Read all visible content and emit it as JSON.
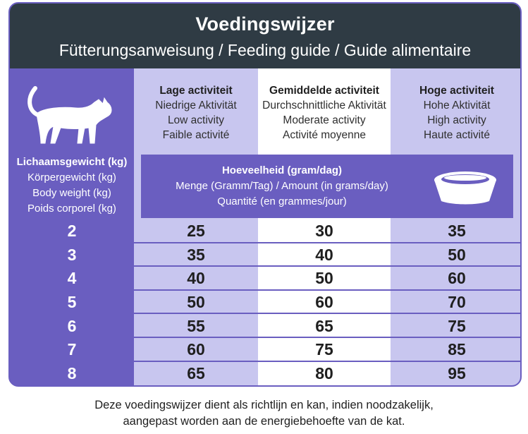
{
  "header": {
    "title": "Voedingswijzer",
    "subtitle": "Fütterungsanweisung / Feeding guide / Guide alimentaire"
  },
  "colors": {
    "header_bg": "#2f3b44",
    "accent_purple": "#6a5ec0",
    "light_purple": "#c8c6ef",
    "white": "#ffffff"
  },
  "icons": {
    "cat": "cat-icon",
    "bowl": "bowl-icon"
  },
  "activity": {
    "low": {
      "nl": "Lage activiteit",
      "de": "Niedrige Aktivität",
      "en": "Low activity",
      "fr": "Faible activité"
    },
    "mid": {
      "nl": "Gemiddelde activiteit",
      "de": "Durchschnittliche Aktivität",
      "en": "Moderate activity",
      "fr": "Activité moyenne"
    },
    "high": {
      "nl": "Hoge activiteit",
      "de": "Hohe Aktivität",
      "en": "High activity",
      "fr": "Haute activité"
    }
  },
  "body_weight": {
    "nl": "Lichaamsgewicht (kg)",
    "de": "Körpergewicht (kg)",
    "en": "Body weight (kg)",
    "fr": "Poids corporel (kg)"
  },
  "amount": {
    "nl": "Hoeveelheid (gram/dag)",
    "de_en": "Menge (Gramm/Tag) / Amount (in grams/day)",
    "fr": "Quantité (en grammes/jour)"
  },
  "rows": [
    {
      "weight": "2",
      "low": "25",
      "mid": "30",
      "high": "35"
    },
    {
      "weight": "3",
      "low": "35",
      "mid": "40",
      "high": "50"
    },
    {
      "weight": "4",
      "low": "40",
      "mid": "50",
      "high": "60"
    },
    {
      "weight": "5",
      "low": "50",
      "mid": "60",
      "high": "70"
    },
    {
      "weight": "6",
      "low": "55",
      "mid": "65",
      "high": "75"
    },
    {
      "weight": "7",
      "low": "60",
      "mid": "75",
      "high": "85"
    },
    {
      "weight": "8",
      "low": "65",
      "mid": "80",
      "high": "95"
    }
  ],
  "footer": {
    "line1": "Deze voedingswijzer dient als richtlijn en kan, indien noodzakelijk,",
    "line2": "aangepast worden aan de energiebehoefte van de kat."
  }
}
